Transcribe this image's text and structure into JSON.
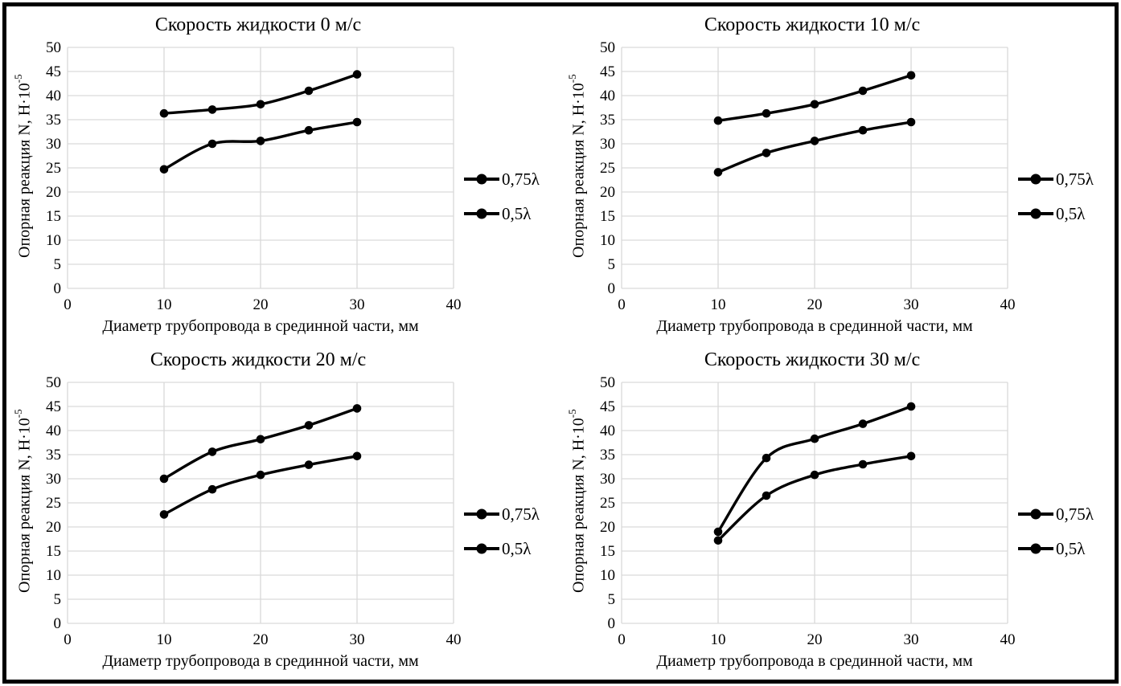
{
  "figure": {
    "description": "Four line charts of support reaction vs pipeline diameter at different liquid velocities",
    "rows": 2,
    "cols": 2
  },
  "style": {
    "frame_color": "#000000",
    "series_color": "#000000",
    "grid_color": "#d9d9d9",
    "background": "#ffffff",
    "text_color": "#000000"
  },
  "axes": {
    "x_label": "Диаметр трубопровода в срединной части, мм",
    "y_label_base": "Опорная реакция N, Н·10",
    "y_label_exponent": "-5",
    "y_label_full": "Опорная реакция N, Н·10⁻⁵",
    "x_ticks": [
      0,
      10,
      20,
      30,
      40
    ],
    "y_ticks": [
      0,
      5,
      10,
      15,
      20,
      25,
      30,
      35,
      40,
      45,
      50
    ]
  },
  "legend_labels": [
    "0,75λ",
    "0,5λ"
  ],
  "chart_data": [
    {
      "type": "line",
      "title": "Скорость жидкости 0 м/с",
      "xlabel": "Диаметр трубопровода в срединной части, мм",
      "ylabel": "Опорная реакция N, Н·10⁻⁵",
      "x": [
        10,
        15,
        20,
        25,
        30
      ],
      "xlim": [
        0,
        40
      ],
      "ylim": [
        0,
        50
      ],
      "x_tick_step": 10,
      "y_tick_step": 5,
      "grid": true,
      "legend_position": "right",
      "series": [
        {
          "name": "0,75λ",
          "color": "#000000",
          "marker": "circle",
          "values": [
            36.3,
            37.1,
            38.2,
            41.0,
            44.4
          ]
        },
        {
          "name": "0,5λ",
          "color": "#000000",
          "marker": "circle",
          "values": [
            24.7,
            30.0,
            30.6,
            32.8,
            34.5
          ]
        }
      ]
    },
    {
      "type": "line",
      "title": "Скорость жидкости 10 м/с",
      "xlabel": "Диаметр трубопровода в срединной части, мм",
      "ylabel": "Опорная реакция N, Н·10⁻⁵",
      "x": [
        10,
        15,
        20,
        25,
        30
      ],
      "xlim": [
        0,
        40
      ],
      "ylim": [
        0,
        50
      ],
      "x_tick_step": 10,
      "y_tick_step": 5,
      "grid": true,
      "legend_position": "right",
      "series": [
        {
          "name": "0,75λ",
          "color": "#000000",
          "marker": "circle",
          "values": [
            34.8,
            36.3,
            38.2,
            41.0,
            44.2
          ]
        },
        {
          "name": "0,5λ",
          "color": "#000000",
          "marker": "circle",
          "values": [
            24.1,
            28.1,
            30.6,
            32.8,
            34.5
          ]
        }
      ]
    },
    {
      "type": "line",
      "title": "Скорость жидкости 20 м/с",
      "xlabel": "Диаметр трубопровода в срединной части, мм",
      "ylabel": "Опорная реакция N, Н·10⁻⁵",
      "x": [
        10,
        15,
        20,
        25,
        30
      ],
      "xlim": [
        0,
        40
      ],
      "ylim": [
        0,
        50
      ],
      "x_tick_step": 10,
      "y_tick_step": 5,
      "grid": true,
      "legend_position": "right",
      "series": [
        {
          "name": "0,75λ",
          "color": "#000000",
          "marker": "circle",
          "values": [
            30.0,
            35.6,
            38.2,
            41.1,
            44.6
          ]
        },
        {
          "name": "0,5λ",
          "color": "#000000",
          "marker": "circle",
          "values": [
            22.6,
            27.8,
            30.8,
            32.9,
            34.7
          ]
        }
      ]
    },
    {
      "type": "line",
      "title": "Скорость жидкости 30 м/с",
      "xlabel": "Диаметр трубопровода в срединной части, мм",
      "ylabel": "Опорная реакция N, Н·10⁻⁵",
      "x": [
        10,
        15,
        20,
        25,
        30
      ],
      "xlim": [
        0,
        40
      ],
      "ylim": [
        0,
        50
      ],
      "x_tick_step": 10,
      "y_tick_step": 5,
      "grid": true,
      "legend_position": "right",
      "series": [
        {
          "name": "0,75λ",
          "color": "#000000",
          "marker": "circle",
          "values": [
            19.0,
            34.3,
            38.3,
            41.4,
            45.0
          ]
        },
        {
          "name": "0,5λ",
          "color": "#000000",
          "marker": "circle",
          "values": [
            17.2,
            26.5,
            30.8,
            33.0,
            34.7
          ]
        }
      ]
    }
  ]
}
